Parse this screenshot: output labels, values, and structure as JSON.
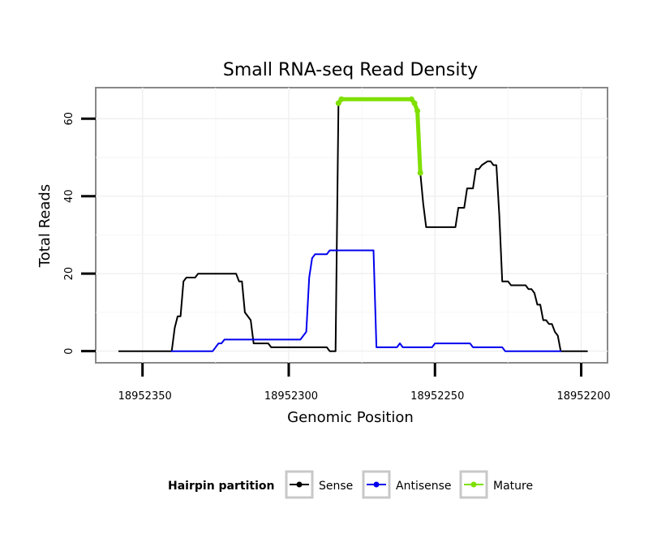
{
  "chart_data": {
    "type": "line",
    "title": "Small RNA-seq Read Density",
    "xlabel": "Genomic Position",
    "ylabel": "Total Reads",
    "x_reversed": true,
    "xlim": [
      18952366,
      18952191
    ],
    "ylim": [
      -3,
      68
    ],
    "x_ticks": [
      18952350,
      18952300,
      18952250,
      18952200
    ],
    "x_tick_labels": [
      "18952350",
      "18952300",
      "18952250",
      "18952200"
    ],
    "y_ticks": [
      0,
      20,
      40,
      60
    ],
    "y_tick_labels": [
      "0",
      "20",
      "40",
      "60"
    ],
    "grid": true,
    "legend": {
      "position": "bottom",
      "title": "Hairpin partition",
      "entries": [
        "Sense",
        "Antisense",
        "Mature"
      ]
    },
    "colors": {
      "Sense": "#000000",
      "Antisense": "#0000ee",
      "Mature": "#7fe000"
    },
    "series": [
      {
        "name": "Sense",
        "points": [
          [
            18952358,
            0
          ],
          [
            18952340,
            0
          ],
          [
            18952339,
            6
          ],
          [
            18952338,
            9
          ],
          [
            18952337,
            9
          ],
          [
            18952336,
            18
          ],
          [
            18952335,
            19
          ],
          [
            18952332,
            19
          ],
          [
            18952331,
            20
          ],
          [
            18952318,
            20
          ],
          [
            18952317,
            18
          ],
          [
            18952316,
            18
          ],
          [
            18952315,
            10
          ],
          [
            18952313,
            8
          ],
          [
            18952312,
            2
          ],
          [
            18952311,
            2
          ],
          [
            18952307,
            2
          ],
          [
            18952306,
            1
          ],
          [
            18952287,
            1
          ],
          [
            18952286,
            0
          ],
          [
            18952284,
            0
          ],
          [
            18952283,
            64
          ],
          [
            18952282,
            65
          ],
          [
            18952258,
            65
          ],
          [
            18952257,
            64
          ],
          [
            18952256,
            62
          ],
          [
            18952255,
            46
          ],
          [
            18952254,
            38
          ],
          [
            18952253,
            32
          ],
          [
            18952243,
            32
          ],
          [
            18952242,
            37
          ],
          [
            18952240,
            37
          ],
          [
            18952239,
            42
          ],
          [
            18952237,
            42
          ],
          [
            18952236,
            47
          ],
          [
            18952235,
            47
          ],
          [
            18952234,
            48
          ],
          [
            18952232,
            49
          ],
          [
            18952231,
            49
          ],
          [
            18952230,
            48
          ],
          [
            18952229,
            48
          ],
          [
            18952228,
            35
          ],
          [
            18952227,
            18
          ],
          [
            18952225,
            18
          ],
          [
            18952224,
            17
          ],
          [
            18952219,
            17
          ],
          [
            18952218,
            16
          ],
          [
            18952217,
            16
          ],
          [
            18952216,
            15
          ],
          [
            18952215,
            12
          ],
          [
            18952214,
            12
          ],
          [
            18952213,
            8
          ],
          [
            18952212,
            8
          ],
          [
            18952211,
            7
          ],
          [
            18952210,
            7
          ],
          [
            18952209,
            5
          ],
          [
            18952208,
            4
          ],
          [
            18952207,
            0
          ],
          [
            18952198,
            0
          ]
        ]
      },
      {
        "name": "Antisense",
        "points": [
          [
            18952340,
            0
          ],
          [
            18952326,
            0
          ],
          [
            18952324,
            2
          ],
          [
            18952323,
            2
          ],
          [
            18952322,
            3
          ],
          [
            18952296,
            3
          ],
          [
            18952294,
            5
          ],
          [
            18952293,
            19
          ],
          [
            18952292,
            24
          ],
          [
            18952291,
            25
          ],
          [
            18952287,
            25
          ],
          [
            18952286,
            26
          ],
          [
            18952271,
            26
          ],
          [
            18952270,
            1
          ],
          [
            18952263,
            1
          ],
          [
            18952262,
            2
          ],
          [
            18952261,
            1
          ],
          [
            18952251,
            1
          ],
          [
            18952250,
            2
          ],
          [
            18952238,
            2
          ],
          [
            18952237,
            1
          ],
          [
            18952227,
            1
          ],
          [
            18952226,
            0
          ],
          [
            18952207,
            0
          ]
        ]
      },
      {
        "name": "Mature",
        "points": [
          [
            18952283,
            64
          ],
          [
            18952282,
            65
          ],
          [
            18952258,
            65
          ],
          [
            18952257,
            64
          ],
          [
            18952256,
            62
          ],
          [
            18952255,
            46
          ]
        ]
      }
    ]
  }
}
